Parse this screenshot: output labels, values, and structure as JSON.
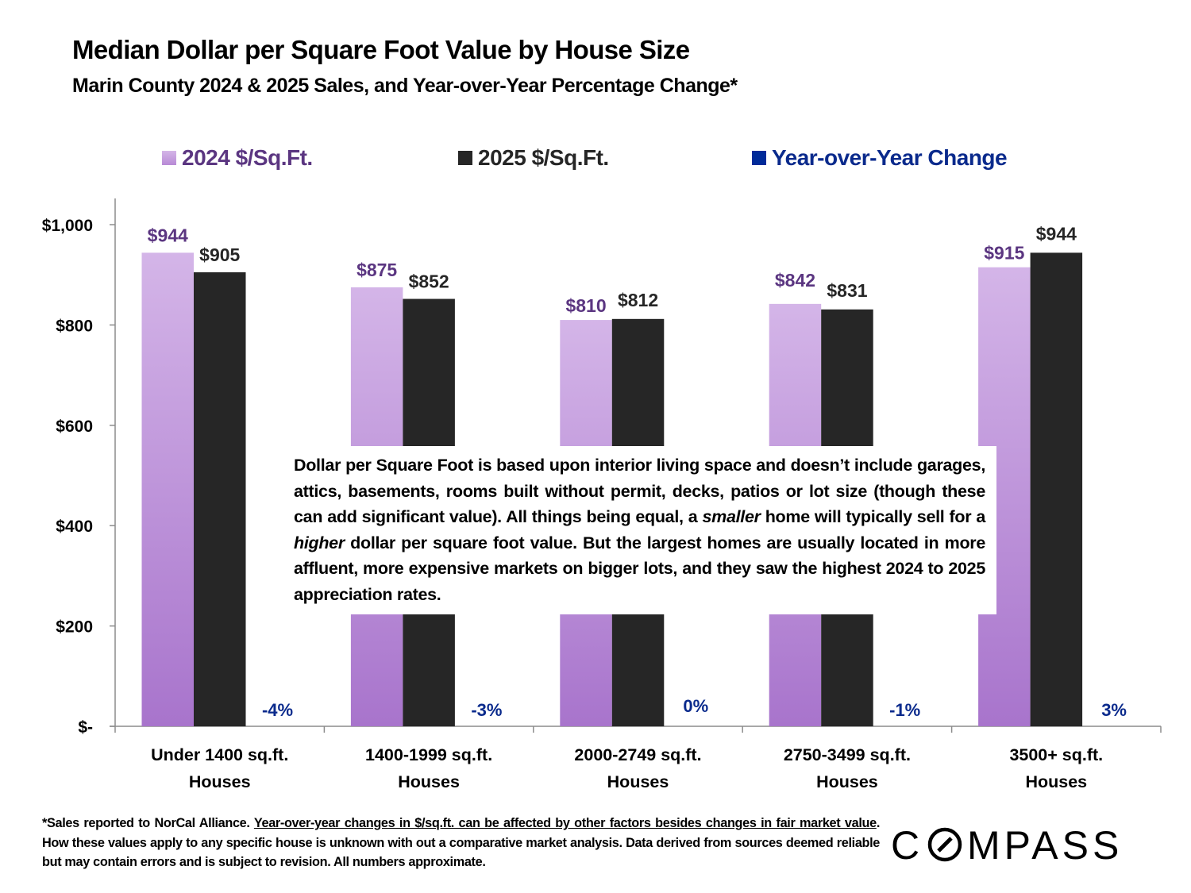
{
  "header": {
    "title": "Median Dollar per Square Foot Value by House Size",
    "subtitle": "Marin County 2024 & 2025 Sales, and Year-over-Year Percentage Change*"
  },
  "legend": [
    {
      "label": "2024 $/Sq.Ft.",
      "color": "#c5a3e0",
      "text_color": "#5b3681"
    },
    {
      "label": "2025 $/Sq.Ft.",
      "color": "#262626",
      "text_color": "#262626"
    },
    {
      "label": "Year-over-Year Change",
      "color": "#002b99",
      "text_color": "#0a2a8c"
    }
  ],
  "chart_data": {
    "type": "bar",
    "title": "Median Dollar per Square Foot Value by House Size",
    "subtitle": "Marin County 2024 & 2025 Sales, and Year-over-Year Percentage Change*",
    "xlabel": "",
    "ylabel": "",
    "categories": [
      [
        "Under 1400 sq.ft.",
        "Houses"
      ],
      [
        "1400-1999 sq.ft.",
        "Houses"
      ],
      [
        "2000-2749 sq.ft.",
        "Houses"
      ],
      [
        "2750-3499 sq.ft.",
        "Houses"
      ],
      [
        "3500+ sq.ft.",
        "Houses"
      ]
    ],
    "series": [
      {
        "name": "2024 $/Sq.Ft.",
        "values": [
          944,
          875,
          810,
          842,
          915
        ],
        "labels": [
          "$944",
          "$875",
          "$810",
          "$842",
          "$915"
        ],
        "color_top": "#d4b5e8",
        "color_bottom": "#a874cc",
        "label_color": "#5b3681"
      },
      {
        "name": "2025 $/Sq.Ft.",
        "values": [
          905,
          852,
          812,
          831,
          944
        ],
        "labels": [
          "$905",
          "$852",
          "$812",
          "$831",
          "$944"
        ],
        "color": "#262626",
        "label_color": "#262626"
      },
      {
        "name": "Year-over-Year Change",
        "values": [
          -4,
          -3,
          0,
          -1,
          3
        ],
        "labels": [
          "-4%",
          "-3%",
          "0%",
          "-1%",
          "3%"
        ],
        "unit": "percent",
        "label_color": "#0a2a8c"
      }
    ],
    "yticks": [
      0,
      200,
      400,
      600,
      800,
      1000
    ],
    "ytick_labels": [
      "$-",
      "$200",
      "$400",
      "$600",
      "$800",
      "$1,000"
    ],
    "ylim": [
      0,
      1000
    ],
    "grid": false,
    "legend_position": "top"
  },
  "annotation": {
    "parts": [
      {
        "text": "Dollar per Square Foot is based upon interior living space and doesn’t include garages, attics, basements, rooms built without permit, decks, patios or lot size (though these can add significant value). All things being equal, a ",
        "italic": false
      },
      {
        "text": "smaller",
        "italic": true
      },
      {
        "text": " home will typically sell for a ",
        "italic": false
      },
      {
        "text": "higher",
        "italic": true
      },
      {
        "text": " dollar per square foot value. But the largest homes are usually located in more affluent, more expensive markets on bigger lots, and they saw the highest 2024 to 2025 appreciation rates.",
        "italic": false
      }
    ]
  },
  "footnote": {
    "part1": "*Sales reported to NorCal Alliance. ",
    "underlined": "Year-over-year changes in $/sq.ft. can be affected by other factors besides changes in fair market value",
    "part2": ". How these values apply to any specific house is unknown with out a comparative market analysis. Data derived from sources deemed reliable but may contain errors and is subject to revision. All numbers  approximate."
  },
  "logo": {
    "text": "COMPASS"
  }
}
